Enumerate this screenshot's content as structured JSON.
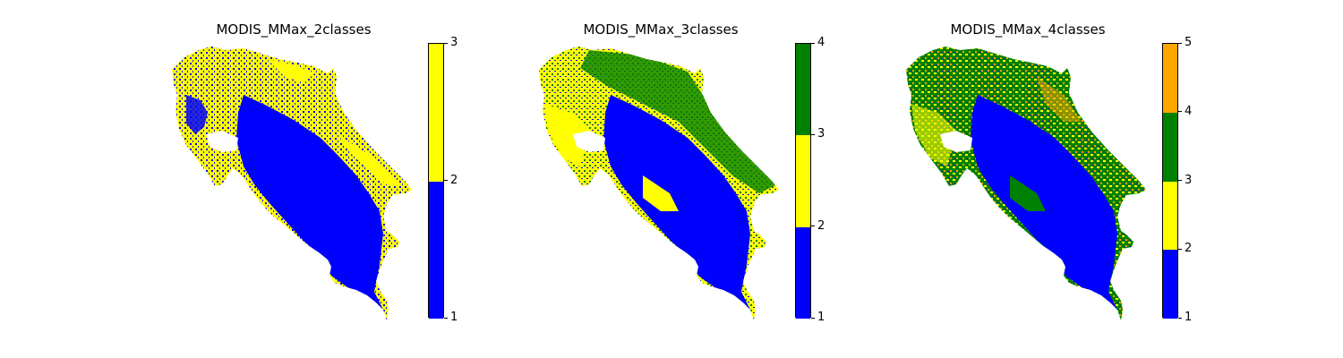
{
  "panels": [
    {
      "title": "MODIS_MMax_2classes",
      "colorbar": {
        "ticks": [
          "1",
          "2",
          "3"
        ],
        "classes": [
          {
            "from": 1,
            "to": 2,
            "color": "#0000ff"
          },
          {
            "from": 2,
            "to": 3,
            "color": "#ffff00"
          }
        ]
      }
    },
    {
      "title": "MODIS_MMax_3classes",
      "colorbar": {
        "ticks": [
          "1",
          "2",
          "3",
          "4"
        ],
        "classes": [
          {
            "from": 1,
            "to": 2,
            "color": "#0000ff"
          },
          {
            "from": 2,
            "to": 3,
            "color": "#ffff00"
          },
          {
            "from": 3,
            "to": 4,
            "color": "#008000"
          }
        ]
      }
    },
    {
      "title": "MODIS_MMax_4classes",
      "colorbar": {
        "ticks": [
          "1",
          "2",
          "3",
          "4",
          "5"
        ],
        "classes": [
          {
            "from": 1,
            "to": 2,
            "color": "#0000ff"
          },
          {
            "from": 2,
            "to": 3,
            "color": "#ffff00"
          },
          {
            "from": 3,
            "to": 4,
            "color": "#008000"
          },
          {
            "from": 4,
            "to": 5,
            "color": "#ffa500"
          }
        ]
      }
    }
  ]
}
